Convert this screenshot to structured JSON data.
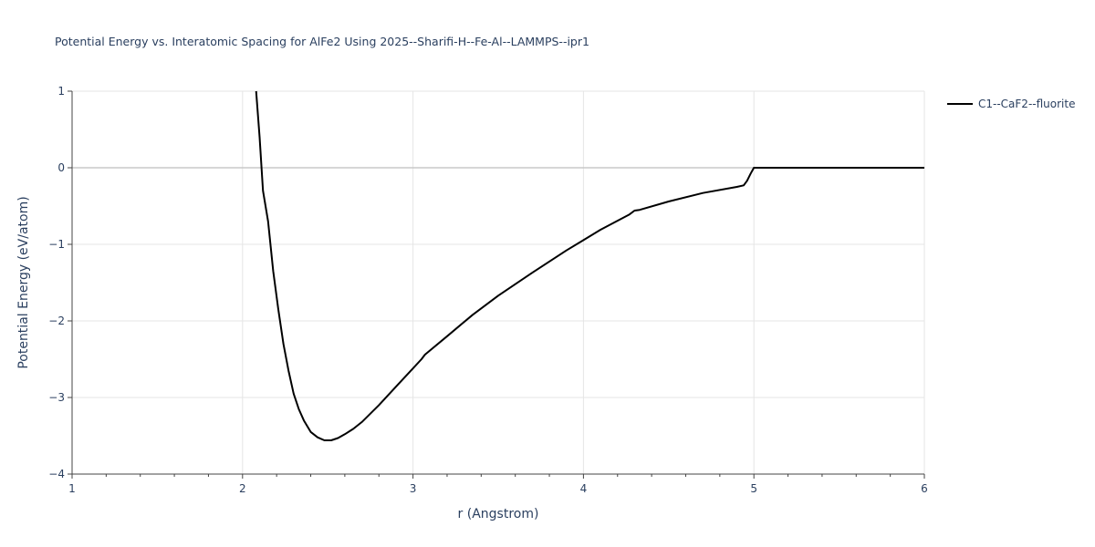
{
  "chart_data": {
    "type": "line",
    "title": "Potential Energy vs. Interatomic Spacing for AlFe2 Using 2025--Sharifi-H--Fe-Al--LAMMPS--ipr1",
    "xlabel": "r (Angstrom)",
    "ylabel": "Potential Energy (eV/atom)",
    "xlim": [
      1,
      6
    ],
    "ylim": [
      -4,
      1
    ],
    "xticks": [
      1,
      2,
      3,
      4,
      5,
      6
    ],
    "yticks": [
      1,
      0,
      -1,
      -2,
      -3,
      -4
    ],
    "xtick_labels": [
      "1",
      "2",
      "3",
      "4",
      "5",
      "6"
    ],
    "ytick_labels": [
      "1",
      "0",
      "−1",
      "−2",
      "−3",
      "−4"
    ],
    "grid": true,
    "legend_position": "top-right",
    "series": [
      {
        "name": "C1--CaF2--fluorite",
        "color": "#000000",
        "x": [
          2.08,
          2.1,
          2.12,
          2.15,
          2.18,
          2.21,
          2.24,
          2.27,
          2.3,
          2.33,
          2.36,
          2.4,
          2.44,
          2.48,
          2.52,
          2.56,
          2.6,
          2.65,
          2.7,
          2.8,
          2.9,
          3.0,
          3.05,
          3.07,
          3.2,
          3.35,
          3.5,
          3.7,
          3.9,
          4.1,
          4.27,
          4.3,
          4.33,
          4.5,
          4.7,
          4.9,
          4.94,
          4.96,
          4.98,
          5.0,
          5.5,
          6.0
        ],
        "y": [
          1.0,
          0.4,
          -0.3,
          -0.7,
          -1.35,
          -1.85,
          -2.3,
          -2.65,
          -2.95,
          -3.15,
          -3.3,
          -3.45,
          -3.52,
          -3.56,
          -3.56,
          -3.53,
          -3.48,
          -3.41,
          -3.32,
          -3.1,
          -2.86,
          -2.62,
          -2.5,
          -2.44,
          -2.2,
          -1.92,
          -1.67,
          -1.37,
          -1.08,
          -0.81,
          -0.61,
          -0.56,
          -0.55,
          -0.44,
          -0.33,
          -0.25,
          -0.23,
          -0.17,
          -0.08,
          0.0,
          0.0,
          0.0
        ]
      }
    ]
  }
}
